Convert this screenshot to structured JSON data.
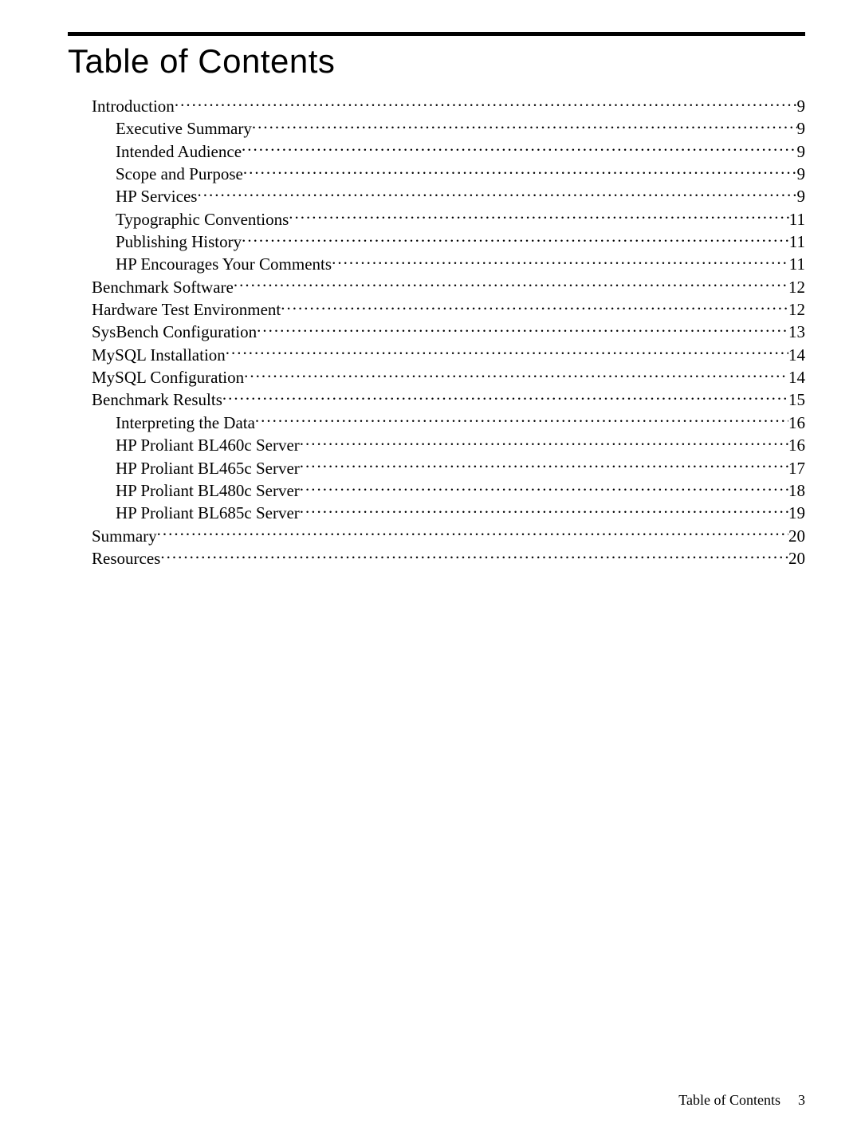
{
  "title": "Table of Contents",
  "toc": [
    {
      "label": "Introduction",
      "page": "9",
      "level": 0
    },
    {
      "label": "Executive Summary",
      "page": "9",
      "level": 1
    },
    {
      "label": "Intended Audience",
      "page": "9",
      "level": 1
    },
    {
      "label": "Scope and Purpose",
      "page": "9",
      "level": 1
    },
    {
      "label": "HP Services",
      "page": "9",
      "level": 1
    },
    {
      "label": "Typographic Conventions",
      "page": "11",
      "level": 1
    },
    {
      "label": "Publishing History",
      "page": "11",
      "level": 1
    },
    {
      "label": "HP Encourages Your Comments",
      "page": "11",
      "level": 1
    },
    {
      "label": "Benchmark Software",
      "page": "12",
      "level": 0
    },
    {
      "label": "Hardware Test Environment",
      "page": "12",
      "level": 0
    },
    {
      "label": "SysBench Configuration",
      "page": "13",
      "level": 0
    },
    {
      "label": "MySQL Installation",
      "page": "14",
      "level": 0
    },
    {
      "label": "MySQL Configuration",
      "page": "14",
      "level": 0
    },
    {
      "label": "Benchmark Results",
      "page": "15",
      "level": 0
    },
    {
      "label": "Interpreting the Data",
      "page": "16",
      "level": 1
    },
    {
      "label": "HP Proliant BL460c Server",
      "page": "16",
      "level": 1
    },
    {
      "label": "HP Proliant BL465c Server",
      "page": "17",
      "level": 1
    },
    {
      "label": "HP Proliant BL480c Server",
      "page": "18",
      "level": 1
    },
    {
      "label": "HP Proliant BL685c Server",
      "page": "19",
      "level": 1
    },
    {
      "label": "Summary",
      "page": "20",
      "level": 0
    },
    {
      "label": "Resources",
      "page": "20",
      "level": 0
    }
  ],
  "footer": {
    "label": "Table of Contents",
    "page_number": "3"
  },
  "colors": {
    "text": "#000000",
    "background": "#ffffff",
    "rule": "#000000"
  },
  "typography": {
    "title_font": "Century Gothic / Futura",
    "title_size_pt": 32,
    "body_font": "Times New Roman",
    "body_size_pt": 16,
    "footer_size_pt": 13
  }
}
